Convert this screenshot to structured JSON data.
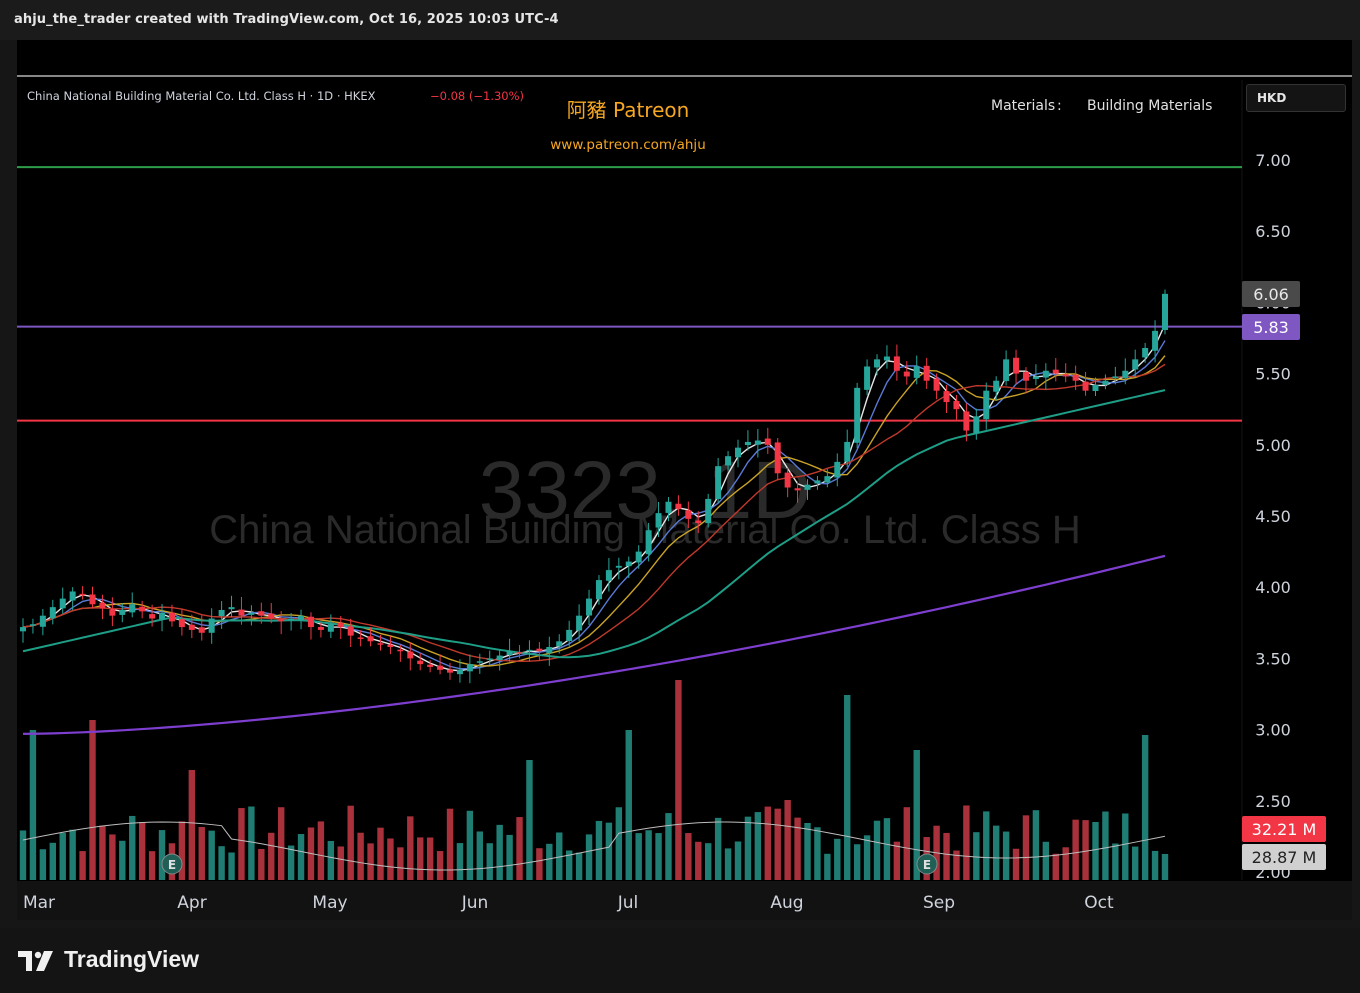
{
  "attribution": "ahju_the_trader created with TradingView.com, Oct 16, 2025 10:03 UTC-4",
  "legend": {
    "symbol_line": "China National Building Material Co. Ltd. Class H · 1D · HKEX",
    "change": "−0.08 (−1.30%)",
    "change_color": "#f23645"
  },
  "branding": {
    "title": "阿豬 Patreon",
    "url": "www.patreon.com/ahju",
    "color": "#f5a623"
  },
  "sector": {
    "label": "Materials",
    "separator": ":",
    "industry": "Building Materials"
  },
  "currency": "HKD",
  "watermark": {
    "ticker": "3323, 1D",
    "name": "China National Building Material Co. Ltd. Class H"
  },
  "footer_brand": "TradingView",
  "colors": {
    "up": "#26a69a",
    "down": "#f23645",
    "background": "#000000",
    "price_line": "#7e57c2"
  },
  "chart_data": {
    "type": "candlestick",
    "x_labels": [
      "Mar",
      "Apr",
      "May",
      "Jun",
      "Jul",
      "Aug",
      "Sep",
      "Oct"
    ],
    "ylim": [
      2.0,
      7.3
    ],
    "y_ticks": [
      7.0,
      6.5,
      6.0,
      5.5,
      5.0,
      4.5,
      4.0,
      3.5,
      3.0,
      2.5,
      2.0
    ],
    "price_labels": {
      "last_price": "6.06",
      "horizontal_line": "5.83",
      "volume_latest": "32.21 M",
      "volume_avg": "28.87 M"
    },
    "horizontal_lines": [
      {
        "price": 6.95,
        "color": "#2e9d4a"
      },
      {
        "price": 5.83,
        "color": "#7e57c2"
      },
      {
        "price": 5.17,
        "color": "#f23645"
      }
    ],
    "close_path": [
      3.72,
      3.74,
      3.8,
      3.86,
      3.92,
      3.97,
      3.95,
      3.88,
      3.85,
      3.8,
      3.84,
      3.88,
      3.83,
      3.78,
      3.82,
      3.76,
      3.72,
      3.7,
      3.68,
      3.78,
      3.84,
      3.86,
      3.8,
      3.82,
      3.8,
      3.78,
      3.76,
      3.78,
      3.8,
      3.72,
      3.7,
      3.74,
      3.72,
      3.66,
      3.64,
      3.62,
      3.6,
      3.58,
      3.55,
      3.5,
      3.46,
      3.44,
      3.42,
      3.4,
      3.42,
      3.46,
      3.48,
      3.5,
      3.52,
      3.55,
      3.54,
      3.56,
      3.55,
      3.58,
      3.62,
      3.7,
      3.8,
      3.92,
      4.05,
      4.12,
      4.15,
      4.18,
      4.25,
      4.4,
      4.52,
      4.6,
      4.55,
      4.48,
      4.45,
      4.62,
      4.85,
      4.92,
      4.98,
      5.02,
      5.03,
      5.0,
      4.8,
      4.7,
      4.68,
      4.72,
      4.75,
      4.78,
      4.88,
      5.02,
      5.4,
      5.55,
      5.6,
      5.62,
      5.52,
      5.48,
      5.55,
      5.45,
      5.38,
      5.3,
      5.25,
      5.1,
      5.2,
      5.38,
      5.45,
      5.6,
      5.5,
      5.45,
      5.48,
      5.52,
      5.5,
      5.48,
      5.45,
      5.38,
      5.42,
      5.45,
      5.48,
      5.52,
      5.6,
      5.68,
      5.8,
      6.06
    ],
    "moving_averages": [
      {
        "name": "",
        "color": "#e6e6e6"
      },
      {
        "name": "",
        "color": "#5a7bd6"
      },
      {
        "name": "",
        "color": "#c9a227"
      },
      {
        "name": "",
        "color": "#c0392b"
      },
      {
        "name": "",
        "color": "#1e9e86"
      },
      {
        "name": "",
        "color": "#7e3fd0"
      }
    ],
    "earnings_markers": [
      "Apr",
      "Sep"
    ]
  }
}
